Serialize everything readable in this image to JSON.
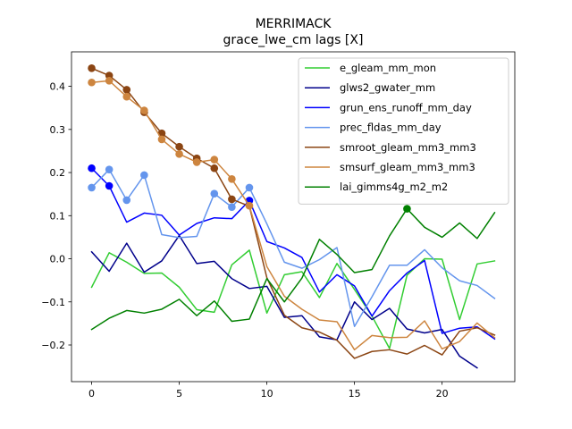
{
  "chart_data": {
    "type": "line",
    "title": "MERRIMACK",
    "subtitle": "grace_lwe_cm lags [X]",
    "xlabel": "",
    "ylabel": "",
    "xlim": [
      -1.15,
      24.15
    ],
    "ylim": [
      -0.285,
      0.48
    ],
    "x_ticks": [
      0,
      5,
      10,
      15,
      20
    ],
    "y_ticks": [
      -0.2,
      -0.1,
      0.0,
      0.1,
      0.2,
      0.3,
      0.4
    ],
    "y_tick_labels": [
      "−0.2",
      "−0.1",
      "0.0",
      "0.1",
      "0.2",
      "0.3",
      "0.4"
    ],
    "grid": false,
    "legend_position": "top-right",
    "x": [
      0,
      1,
      2,
      3,
      4,
      5,
      6,
      7,
      8,
      9,
      10,
      11,
      12,
      13,
      14,
      15,
      16,
      17,
      18,
      19,
      20,
      21,
      22,
      23
    ],
    "series": [
      {
        "name": "e_gleam_mm_mon",
        "color": "#32cd32",
        "values": [
          -0.066,
          0.014,
          -0.008,
          -0.034,
          -0.033,
          -0.066,
          -0.118,
          -0.124,
          -0.014,
          0.02,
          -0.126,
          -0.037,
          -0.03,
          -0.09,
          -0.011,
          -0.071,
          -0.133,
          -0.208,
          -0.038,
          0.0,
          -0.001,
          -0.141,
          -0.012,
          -0.005
        ],
        "markers": []
      },
      {
        "name": "glws2_gwater_mm",
        "color": "#00008b",
        "values": [
          0.016,
          -0.029,
          0.036,
          -0.031,
          -0.005,
          0.054,
          -0.011,
          -0.006,
          -0.046,
          -0.069,
          -0.064,
          -0.136,
          -0.132,
          -0.181,
          -0.188,
          -0.1,
          -0.141,
          -0.115,
          -0.163,
          -0.172,
          -0.164,
          -0.226,
          -0.253,
          null
        ],
        "markers": []
      },
      {
        "name": "grun_ens_runoff_mm_day",
        "color": "#0000ff",
        "values": [
          0.21,
          0.169,
          0.085,
          0.106,
          0.101,
          0.055,
          0.082,
          0.095,
          0.093,
          0.135,
          0.04,
          0.025,
          0.003,
          -0.077,
          -0.037,
          -0.063,
          -0.133,
          -0.074,
          -0.033,
          -0.004,
          -0.173,
          -0.161,
          -0.158,
          -0.186
        ],
        "markers": [
          0,
          1,
          9
        ]
      },
      {
        "name": "prec_fldas_mm_day",
        "color": "#6495ed",
        "values": [
          0.165,
          0.207,
          0.136,
          0.194,
          0.056,
          0.049,
          0.052,
          0.151,
          0.12,
          0.165,
          0.081,
          -0.008,
          -0.022,
          -0.002,
          0.026,
          -0.157,
          -0.088,
          -0.015,
          -0.015,
          0.021,
          -0.021,
          -0.051,
          -0.062,
          -0.092
        ],
        "markers": [
          0,
          1,
          2,
          3,
          7,
          8,
          9
        ]
      },
      {
        "name": "smroot_gleam_mm3_mm3",
        "color": "#8b4513",
        "values": [
          0.442,
          0.425,
          0.392,
          0.34,
          0.291,
          0.26,
          0.233,
          0.21,
          0.138,
          0.122,
          -0.044,
          -0.131,
          -0.16,
          -0.17,
          -0.189,
          -0.231,
          -0.215,
          -0.211,
          -0.221,
          -0.201,
          -0.223,
          -0.168,
          -0.16,
          -0.177
        ],
        "markers": [
          0,
          1,
          2,
          3,
          4,
          5,
          6,
          7,
          8
        ]
      },
      {
        "name": "smsurf_gleam_mm3_mm3",
        "color": "#cd853f",
        "values": [
          0.409,
          0.413,
          0.376,
          0.344,
          0.277,
          0.243,
          0.224,
          0.23,
          0.185,
          0.123,
          -0.018,
          -0.087,
          -0.117,
          -0.142,
          -0.146,
          -0.211,
          -0.178,
          -0.183,
          -0.182,
          -0.144,
          -0.209,
          -0.192,
          -0.149,
          -0.183
        ],
        "markers": [
          0,
          1,
          2,
          3,
          4,
          5,
          6,
          7,
          8,
          9
        ]
      },
      {
        "name": "lai_gimms4g_m2_m2",
        "color": "#008000",
        "values": [
          -0.164,
          -0.138,
          -0.12,
          -0.126,
          -0.117,
          -0.094,
          -0.132,
          -0.098,
          -0.145,
          -0.14,
          -0.046,
          -0.1,
          -0.045,
          0.045,
          0.01,
          -0.032,
          -0.025,
          0.053,
          0.116,
          0.073,
          0.05,
          0.083,
          0.047,
          0.107
        ],
        "markers": [
          18
        ]
      }
    ]
  }
}
